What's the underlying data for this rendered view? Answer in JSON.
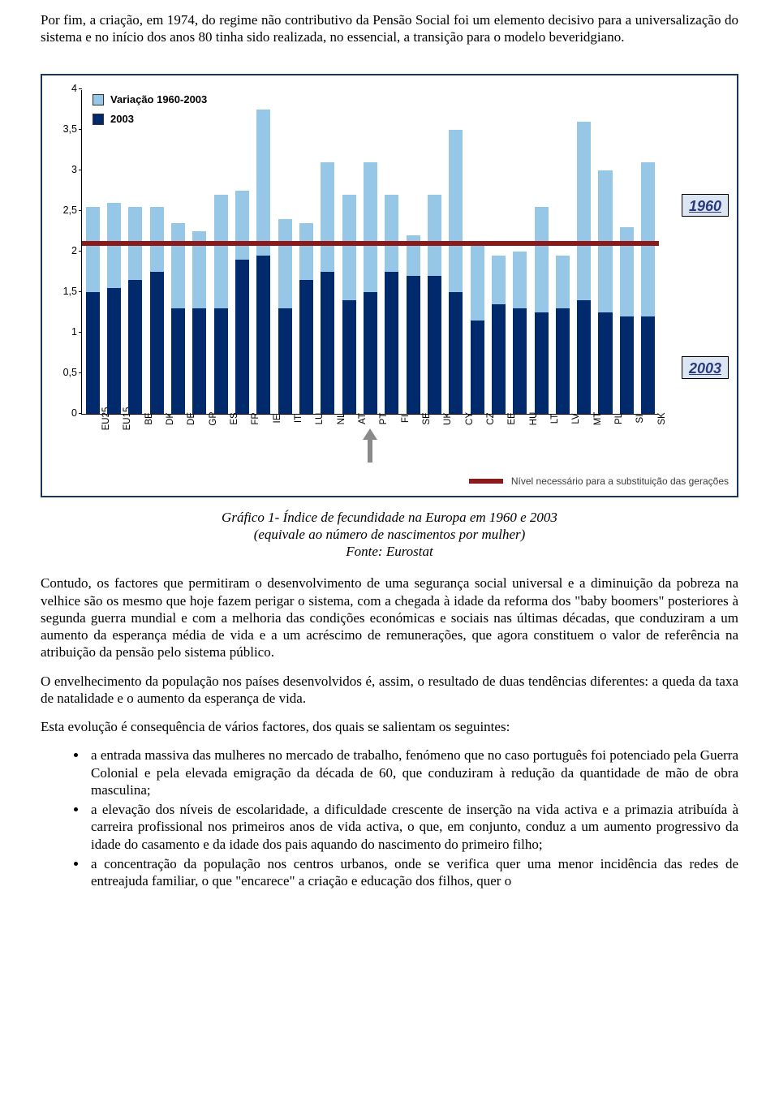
{
  "para1": "Por fim, a criação, em 1974, do regime não contributivo da Pensão Social foi um elemento decisivo para a universalização do sistema e no início dos anos 80 tinha sido realizada, no essencial, a transição para o modelo beveridgiano.",
  "chart": {
    "type": "bar",
    "legend": {
      "variacao": "Variação 1960-2003",
      "v2003": "2003"
    },
    "colors": {
      "v2003": "#002a6b",
      "v1960": "#96c7e6",
      "replacement_line": "#8b1a1a",
      "frame_border": "#1a365d",
      "side_label_bg": "#dce6f3",
      "side_label_text": "#2a3a7a"
    },
    "ylim": [
      0,
      4
    ],
    "ytick_step": 0.5,
    "yticks": [
      "0",
      "0,5",
      "1",
      "1,5",
      "2",
      "2,5",
      "3",
      "3,5",
      "4"
    ],
    "replacement_level": 2.1,
    "categories": [
      "EU25",
      "EU15",
      "BE",
      "DK",
      "DE",
      "GR",
      "ES",
      "FR",
      "IE",
      "IT",
      "LU",
      "NL",
      "AT",
      "PT",
      "FI",
      "SE",
      "UK",
      "CY",
      "CZ",
      "EE",
      "HU",
      "LT",
      "LV",
      "MT",
      "PL",
      "SI",
      "SK"
    ],
    "v1960": [
      2.55,
      2.6,
      2.55,
      2.55,
      2.35,
      2.25,
      2.7,
      2.75,
      3.75,
      2.4,
      2.35,
      3.1,
      2.7,
      3.1,
      2.7,
      2.2,
      2.7,
      3.5,
      2.1,
      1.95,
      2.0,
      2.55,
      1.95,
      3.6,
      3.0,
      2.3,
      3.1
    ],
    "v2003": [
      1.5,
      1.55,
      1.65,
      1.75,
      1.3,
      1.3,
      1.3,
      1.9,
      1.95,
      1.3,
      1.65,
      1.75,
      1.4,
      1.5,
      1.75,
      1.7,
      1.7,
      1.5,
      1.15,
      1.35,
      1.3,
      1.25,
      1.3,
      1.4,
      1.25,
      1.2,
      1.2
    ],
    "side_labels": {
      "y1960": "1960",
      "y2003": "2003"
    },
    "pt_index": 13,
    "footnote": "Nível necessário para a substituição das gerações"
  },
  "caption": {
    "line1": "Gráfico 1- Índice de fecundidade na Europa em 1960 e 2003",
    "line2": "(equivale ao número de nascimentos por mulher)",
    "line3": "Fonte: Eurostat"
  },
  "para2": "Contudo, os factores que permitiram o desenvolvimento de uma segurança social universal e a diminuição da pobreza na velhice são os mesmo que hoje fazem perigar o sistema, com a chegada à idade da reforma dos \"baby boomers\" posteriores à segunda guerra mundial e com a melhoria das condições económicas e sociais nas últimas décadas, que conduziram a um aumento da esperança média de vida e a um acréscimo de remunerações, que agora constituem o valor de referência na atribuição da pensão pelo sistema público.",
  "para3": "O envelhecimento da população nos países desenvolvidos é, assim, o resultado de duas tendências diferentes: a queda da taxa de natalidade e o aumento da esperança de vida.",
  "para4": "Esta evolução é consequência de vários factores, dos quais se salientam os seguintes:",
  "bullets": [
    "a entrada massiva das mulheres no mercado de trabalho, fenómeno que no caso português foi potenciado pela Guerra Colonial e pela elevada emigração da década de 60, que conduziram à redução da quantidade de mão de obra masculina;",
    "a elevação dos níveis de escolaridade, a dificuldade crescente de inserção na vida activa e a primazia atribuída à carreira profissional nos primeiros anos de vida activa, o que, em conjunto, conduz a um aumento progressivo da idade do casamento e da idade dos pais aquando do nascimento do primeiro filho;",
    "a concentração da população nos centros urbanos, onde se verifica quer uma menor incidência das redes de entreajuda familiar, o que \"encarece\" a criação e educação dos filhos, quer o"
  ]
}
